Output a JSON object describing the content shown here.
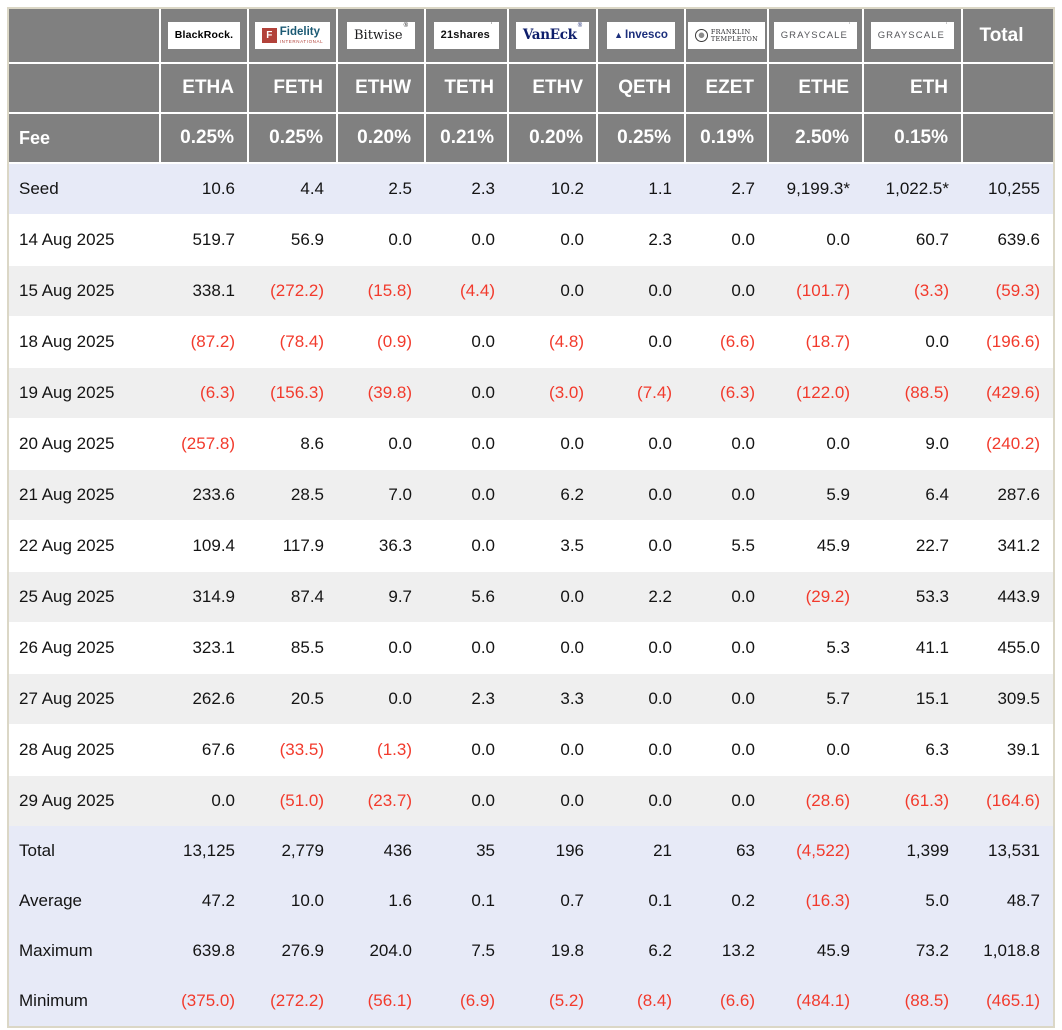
{
  "colors": {
    "header_gray": "#808080",
    "band_lavender": "#e7eaf7",
    "stripe_gray": "#efefef",
    "negative_red": "#f23a2c",
    "frame_beige": "#dbd7c6",
    "header_text": "#ffffff",
    "body_text": "#141414"
  },
  "chart_data": {
    "type": "table",
    "fee_label": "Fee",
    "total_label": "Total",
    "providers": [
      {
        "logo": "blackrock-logo",
        "brand": "BlackRock.",
        "ticker": "ETHA",
        "fee": "0.25%"
      },
      {
        "logo": "fidelity-logo",
        "brand": "Fidelity",
        "brand_icon": "F",
        "brand_sub": "INTERNATIONAL",
        "ticker": "FETH",
        "fee": "0.25%"
      },
      {
        "logo": "bitwise-logo",
        "brand": "Bitwise",
        "brand_mark": "®",
        "ticker": "ETHW",
        "fee": "0.20%"
      },
      {
        "logo": "21shares-logo",
        "brand": "21shares",
        "brand_mark": "ʼ",
        "ticker": "TETH",
        "fee": "0.21%"
      },
      {
        "logo": "vaneck-logo",
        "brand": "VanEck",
        "brand_mark": "®",
        "ticker": "ETHV",
        "fee": "0.20%"
      },
      {
        "logo": "invesco-logo",
        "brand": "Invesco",
        "ticker": "QETH",
        "fee": "0.25%"
      },
      {
        "logo": "franklin-templeton-logo",
        "brand_lines": [
          "FRANKLIN",
          "TEMPLETON"
        ],
        "ticker": "EZET",
        "fee": "0.19%"
      },
      {
        "logo": "grayscale-logo",
        "brand": "GRAYSCALE",
        "brand_mark": "ʼ",
        "ticker": "ETHE",
        "fee": "2.50%"
      },
      {
        "logo": "grayscale-logo",
        "brand": "GRAYSCALE",
        "brand_mark": "ʼ",
        "ticker": "ETH",
        "fee": "0.15%"
      }
    ],
    "rows": [
      {
        "label": "Seed",
        "kind": "band",
        "values": [
          "10.6",
          "4.4",
          "2.5",
          "2.3",
          "10.2",
          "1.1",
          "2.7",
          "9,199.3*",
          "1,022.5*"
        ],
        "total": "10,255"
      },
      {
        "label": "14 Aug 2025",
        "kind": "white",
        "values": [
          "519.7",
          "56.9",
          "0.0",
          "0.0",
          "0.0",
          "2.3",
          "0.0",
          "0.0",
          "60.7"
        ],
        "total": "639.6"
      },
      {
        "label": "15 Aug 2025",
        "kind": "gray",
        "values": [
          "338.1",
          "(272.2)",
          "(15.8)",
          "(4.4)",
          "0.0",
          "0.0",
          "0.0",
          "(101.7)",
          "(3.3)"
        ],
        "total": "(59.3)"
      },
      {
        "label": "18 Aug 2025",
        "kind": "white",
        "values": [
          "(87.2)",
          "(78.4)",
          "(0.9)",
          "0.0",
          "(4.8)",
          "0.0",
          "(6.6)",
          "(18.7)",
          "0.0"
        ],
        "total": "(196.6)"
      },
      {
        "label": "19 Aug 2025",
        "kind": "gray",
        "values": [
          "(6.3)",
          "(156.3)",
          "(39.8)",
          "0.0",
          "(3.0)",
          "(7.4)",
          "(6.3)",
          "(122.0)",
          "(88.5)"
        ],
        "total": "(429.6)"
      },
      {
        "label": "20 Aug 2025",
        "kind": "white",
        "values": [
          "(257.8)",
          "8.6",
          "0.0",
          "0.0",
          "0.0",
          "0.0",
          "0.0",
          "0.0",
          "9.0"
        ],
        "total": "(240.2)"
      },
      {
        "label": "21 Aug 2025",
        "kind": "gray",
        "values": [
          "233.6",
          "28.5",
          "7.0",
          "0.0",
          "6.2",
          "0.0",
          "0.0",
          "5.9",
          "6.4"
        ],
        "total": "287.6"
      },
      {
        "label": "22 Aug 2025",
        "kind": "white",
        "values": [
          "109.4",
          "117.9",
          "36.3",
          "0.0",
          "3.5",
          "0.0",
          "5.5",
          "45.9",
          "22.7"
        ],
        "total": "341.2"
      },
      {
        "label": "25 Aug 2025",
        "kind": "gray",
        "values": [
          "314.9",
          "87.4",
          "9.7",
          "5.6",
          "0.0",
          "2.2",
          "0.0",
          "(29.2)",
          "53.3"
        ],
        "total": "443.9"
      },
      {
        "label": "26 Aug 2025",
        "kind": "white",
        "values": [
          "323.1",
          "85.5",
          "0.0",
          "0.0",
          "0.0",
          "0.0",
          "0.0",
          "5.3",
          "41.1"
        ],
        "total": "455.0"
      },
      {
        "label": "27 Aug 2025",
        "kind": "gray",
        "values": [
          "262.6",
          "20.5",
          "0.0",
          "2.3",
          "3.3",
          "0.0",
          "0.0",
          "5.7",
          "15.1"
        ],
        "total": "309.5"
      },
      {
        "label": "28 Aug 2025",
        "kind": "white",
        "values": [
          "67.6",
          "(33.5)",
          "(1.3)",
          "0.0",
          "0.0",
          "0.0",
          "0.0",
          "0.0",
          "6.3"
        ],
        "total": "39.1"
      },
      {
        "label": "29 Aug 2025",
        "kind": "gray",
        "values": [
          "0.0",
          "(51.0)",
          "(23.7)",
          "0.0",
          "0.0",
          "0.0",
          "0.0",
          "(28.6)",
          "(61.3)"
        ],
        "total": "(164.6)"
      },
      {
        "label": "Total",
        "kind": "band",
        "values": [
          "13,125",
          "2,779",
          "436",
          "35",
          "196",
          "21",
          "63",
          "(4,522)",
          "1,399"
        ],
        "total": "13,531"
      },
      {
        "label": "Average",
        "kind": "band",
        "values": [
          "47.2",
          "10.0",
          "1.6",
          "0.1",
          "0.7",
          "0.1",
          "0.2",
          "(16.3)",
          "5.0"
        ],
        "total": "48.7"
      },
      {
        "label": "Maximum",
        "kind": "band",
        "values": [
          "639.8",
          "276.9",
          "204.0",
          "7.5",
          "19.8",
          "6.2",
          "13.2",
          "45.9",
          "73.2"
        ],
        "total": "1,018.8"
      },
      {
        "label": "Minimum",
        "kind": "band",
        "values": [
          "(375.0)",
          "(272.2)",
          "(56.1)",
          "(6.9)",
          "(5.2)",
          "(8.4)",
          "(6.6)",
          "(484.1)",
          "(88.5)"
        ],
        "total": "(465.1)"
      }
    ]
  }
}
